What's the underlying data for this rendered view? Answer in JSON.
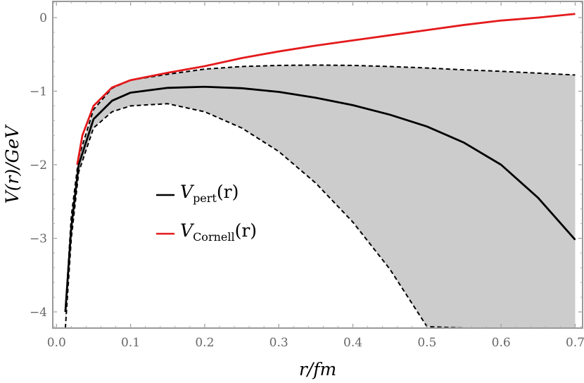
{
  "chart_data": {
    "type": "line",
    "title": "",
    "xlabel": "r/fm",
    "ylabel": "V(r)/GeV",
    "xlim": [
      -0.005,
      0.71
    ],
    "ylim": [
      -4.22,
      0.22
    ],
    "x_ticks": [
      0.0,
      0.1,
      0.2,
      0.3,
      0.4,
      0.5,
      0.6,
      0.7
    ],
    "x_tick_labels": [
      "0.0",
      "0.1",
      "0.2",
      "0.3",
      "0.4",
      "0.5",
      "0.6",
      "0.7"
    ],
    "y_ticks": [
      0,
      -1,
      -2,
      -3,
      -4
    ],
    "y_tick_labels": [
      "0",
      "−1",
      "−2",
      "−3",
      "−4"
    ],
    "grid": false,
    "legend_position": "center-left",
    "series": [
      {
        "name": "V_pert(r)",
        "legend_main": "V",
        "legend_sub": "pert",
        "legend_tail": "(r)",
        "color": "#000000",
        "style": "solid",
        "x": [
          0.012,
          0.02,
          0.03,
          0.05,
          0.075,
          0.1,
          0.15,
          0.2,
          0.25,
          0.3,
          0.35,
          0.4,
          0.45,
          0.5,
          0.55,
          0.6,
          0.65,
          0.7
        ],
        "y": [
          -4.0,
          -2.85,
          -2.0,
          -1.38,
          -1.13,
          -1.02,
          -0.955,
          -0.94,
          -0.96,
          -1.01,
          -1.09,
          -1.19,
          -1.32,
          -1.48,
          -1.7,
          -2.0,
          -2.45,
          -3.02
        ]
      },
      {
        "name": "V_Cornell(r)",
        "legend_main": "V",
        "legend_sub": "Cornell",
        "legend_tail": "(r)",
        "color": "#e41a1c",
        "style": "solid",
        "x": [
          0.028,
          0.035,
          0.05,
          0.075,
          0.1,
          0.15,
          0.2,
          0.25,
          0.3,
          0.35,
          0.4,
          0.45,
          0.5,
          0.55,
          0.6,
          0.65,
          0.7
        ],
        "y": [
          -2.0,
          -1.6,
          -1.2,
          -0.95,
          -0.85,
          -0.75,
          -0.66,
          -0.55,
          -0.46,
          -0.38,
          -0.31,
          -0.24,
          -0.17,
          -0.1,
          -0.04,
          0.0,
          0.05
        ]
      }
    ],
    "band": {
      "color": "#cccccc",
      "x": [
        0.012,
        0.02,
        0.03,
        0.05,
        0.075,
        0.1,
        0.15,
        0.2,
        0.25,
        0.3,
        0.35,
        0.4,
        0.45,
        0.5,
        0.55,
        0.6,
        0.65,
        0.7
      ],
      "upper": [
        -4.0,
        -2.7,
        -1.9,
        -1.25,
        -0.96,
        -0.85,
        -0.77,
        -0.7,
        -0.665,
        -0.65,
        -0.645,
        -0.65,
        -0.665,
        -0.685,
        -0.71,
        -0.73,
        -0.755,
        -0.78
      ],
      "lower": [
        -4.22,
        -3.0,
        -2.1,
        -1.5,
        -1.28,
        -1.2,
        -1.17,
        -1.28,
        -1.5,
        -1.82,
        -2.25,
        -2.78,
        -3.42,
        -4.2,
        -4.22,
        -4.22,
        -4.22,
        -4.22
      ]
    }
  }
}
